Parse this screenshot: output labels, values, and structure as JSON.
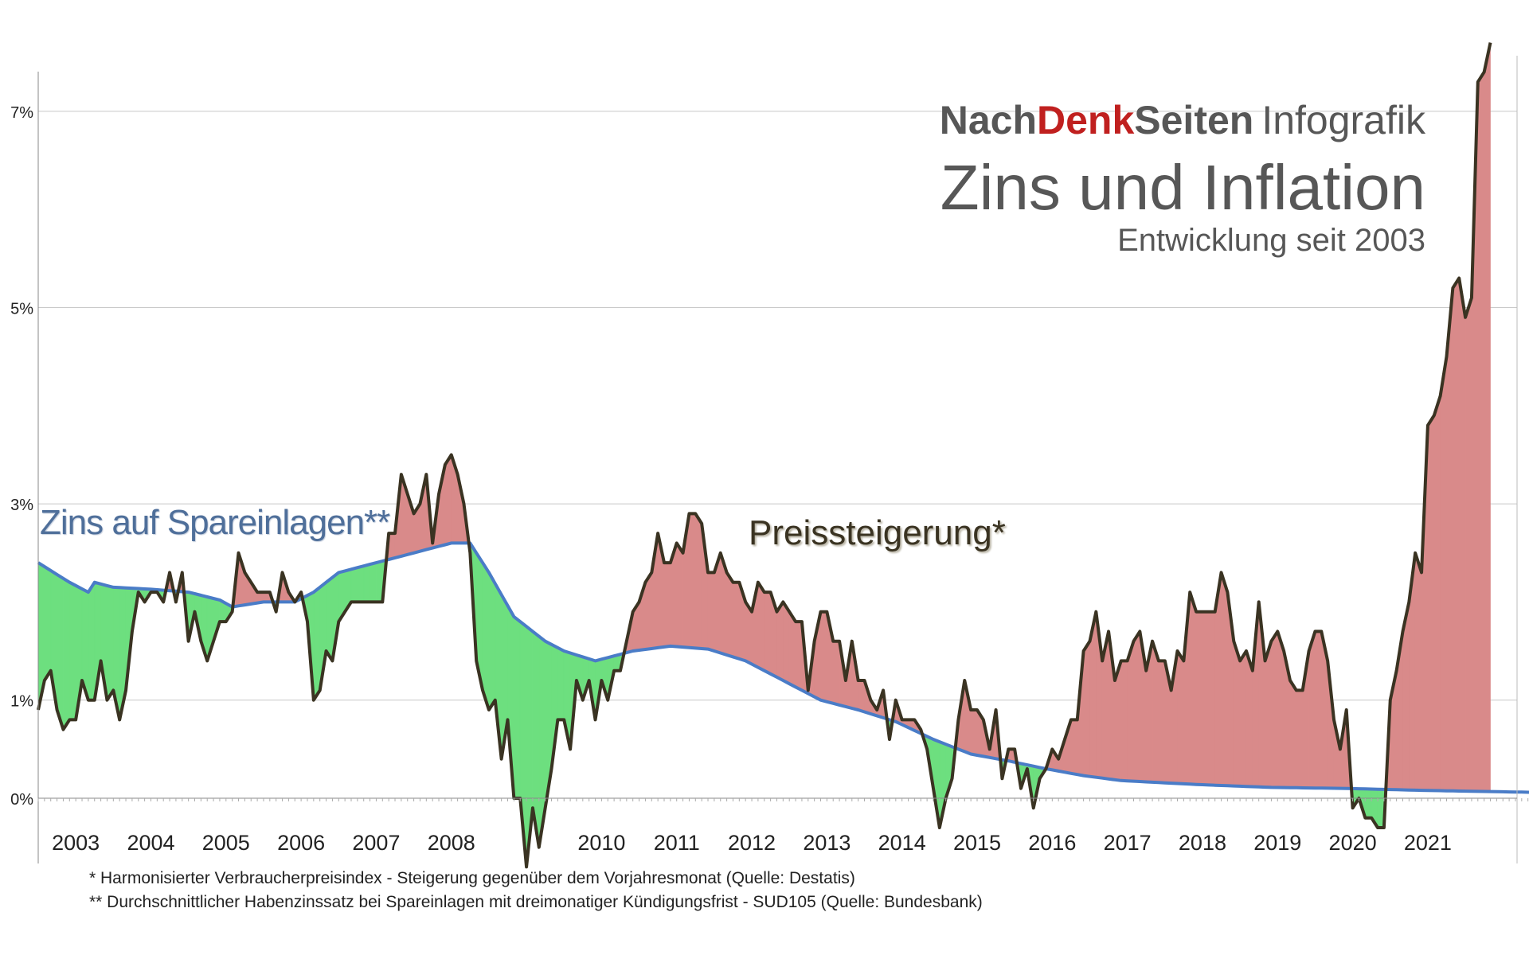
{
  "header": {
    "brand_part1": "Nach",
    "brand_part2": "Denk",
    "brand_part3": "Seiten",
    "brand_suffix": "Infografik",
    "title": "Zins und Inflation",
    "subtitle": "Entwicklung seit 2003"
  },
  "footnotes": [
    "* Harmonisierter Verbraucherpreisindex - Steigerung gegenüber dem Vorjahresmonat (Quelle: Destatis)",
    "** Durchschnittlicher Habenzinssatz bei Spareinlagen mit dreimonatiger Kündigungsfrist - SUD105 (Quelle: Bundesbank)"
  ],
  "colors": {
    "savings_line": "#4a7cc7",
    "inflation_line": "#3a3322",
    "positive_gap_fill": "#d98a8a",
    "negative_gap_fill": "#6ddf7f",
    "gridline": "#c8c8c8",
    "brand_red": "#c0201f",
    "brand_gray": "#575757"
  },
  "chart_data": {
    "type": "line",
    "x_start": "2003-01",
    "x_end": "2022-12",
    "x_tick_labels": [
      "2003",
      "2004",
      "2005",
      "2006",
      "2007",
      "2008",
      "2010",
      "2011",
      "2012",
      "2013",
      "2014",
      "2015",
      "2016",
      "2017",
      "2018",
      "2019",
      "2020",
      "2021"
    ],
    "y_tick_labels": [
      "0%",
      "1%",
      "3%",
      "5%",
      "7%"
    ],
    "y_tick_values": [
      0,
      1,
      3,
      5,
      7
    ],
    "ylim": [
      -0.75,
      7.5
    ],
    "grid": "horizontal",
    "series": [
      {
        "name": "Zins auf Spareinlagen**",
        "role": "savings",
        "points": [
          [
            "2003-01",
            2.4
          ],
          [
            "2003-06",
            2.2
          ],
          [
            "2003-09",
            2.1
          ],
          [
            "2003-10",
            2.2
          ],
          [
            "2004-01",
            2.15
          ],
          [
            "2004-07",
            2.13
          ],
          [
            "2005-01",
            2.1
          ],
          [
            "2005-06",
            2.02
          ],
          [
            "2005-08",
            1.95
          ],
          [
            "2006-01",
            2.0
          ],
          [
            "2006-06",
            2.0
          ],
          [
            "2006-09",
            2.1
          ],
          [
            "2007-01",
            2.3
          ],
          [
            "2007-07",
            2.4
          ],
          [
            "2008-01",
            2.5
          ],
          [
            "2008-07",
            2.6
          ],
          [
            "2008-10",
            2.6
          ],
          [
            "2009-01",
            2.3
          ],
          [
            "2009-05",
            1.85
          ],
          [
            "2009-10",
            1.6
          ],
          [
            "2010-01",
            1.5
          ],
          [
            "2010-06",
            1.4
          ],
          [
            "2010-12",
            1.5
          ],
          [
            "2011-06",
            1.55
          ],
          [
            "2011-12",
            1.52
          ],
          [
            "2012-06",
            1.4
          ],
          [
            "2012-12",
            1.2
          ],
          [
            "2013-06",
            1.0
          ],
          [
            "2013-12",
            0.9
          ],
          [
            "2014-06",
            0.78
          ],
          [
            "2014-12",
            0.6
          ],
          [
            "2015-06",
            0.45
          ],
          [
            "2015-12",
            0.38
          ],
          [
            "2016-06",
            0.3
          ],
          [
            "2016-12",
            0.23
          ],
          [
            "2017-06",
            0.18
          ],
          [
            "2018-06",
            0.14
          ],
          [
            "2019-06",
            0.11
          ],
          [
            "2020-06",
            0.1
          ],
          [
            "2021-06",
            0.08
          ],
          [
            "2022-12",
            0.06
          ]
        ]
      },
      {
        "name": "Preissteigerung*",
        "role": "inflation",
        "points": [
          [
            "2003-01",
            0.9
          ],
          [
            "2003-02",
            1.2
          ],
          [
            "2003-03",
            1.3
          ],
          [
            "2003-04",
            0.9
          ],
          [
            "2003-05",
            0.7
          ],
          [
            "2003-06",
            0.8
          ],
          [
            "2003-07",
            0.8
          ],
          [
            "2003-08",
            1.2
          ],
          [
            "2003-09",
            1.0
          ],
          [
            "2003-10",
            1.0
          ],
          [
            "2003-11",
            1.4
          ],
          [
            "2003-12",
            1.0
          ],
          [
            "2004-01",
            1.1
          ],
          [
            "2004-02",
            0.8
          ],
          [
            "2004-03",
            1.1
          ],
          [
            "2004-04",
            1.7
          ],
          [
            "2004-05",
            2.1
          ],
          [
            "2004-06",
            2.0
          ],
          [
            "2004-07",
            2.1
          ],
          [
            "2004-08",
            2.1
          ],
          [
            "2004-09",
            2.0
          ],
          [
            "2004-10",
            2.3
          ],
          [
            "2004-11",
            2.0
          ],
          [
            "2004-12",
            2.3
          ],
          [
            "2005-01",
            1.6
          ],
          [
            "2005-02",
            1.9
          ],
          [
            "2005-03",
            1.6
          ],
          [
            "2005-04",
            1.4
          ],
          [
            "2005-05",
            1.6
          ],
          [
            "2005-06",
            1.8
          ],
          [
            "2005-07",
            1.8
          ],
          [
            "2005-08",
            1.9
          ],
          [
            "2005-09",
            2.5
          ],
          [
            "2005-10",
            2.3
          ],
          [
            "2005-11",
            2.2
          ],
          [
            "2005-12",
            2.1
          ],
          [
            "2006-01",
            2.1
          ],
          [
            "2006-02",
            2.1
          ],
          [
            "2006-03",
            1.9
          ],
          [
            "2006-04",
            2.3
          ],
          [
            "2006-05",
            2.1
          ],
          [
            "2006-06",
            2.0
          ],
          [
            "2006-07",
            2.1
          ],
          [
            "2006-08",
            1.8
          ],
          [
            "2006-09",
            1.0
          ],
          [
            "2006-10",
            1.1
          ],
          [
            "2006-11",
            1.5
          ],
          [
            "2006-12",
            1.4
          ],
          [
            "2007-01",
            1.8
          ],
          [
            "2007-02",
            1.9
          ],
          [
            "2007-03",
            2.0
          ],
          [
            "2007-04",
            2.0
          ],
          [
            "2007-05",
            2.0
          ],
          [
            "2007-06",
            2.0
          ],
          [
            "2007-07",
            2.0
          ],
          [
            "2007-08",
            2.0
          ],
          [
            "2007-09",
            2.7
          ],
          [
            "2007-10",
            2.7
          ],
          [
            "2007-11",
            3.3
          ],
          [
            "2007-12",
            3.1
          ],
          [
            "2008-01",
            2.9
          ],
          [
            "2008-02",
            3.0
          ],
          [
            "2008-03",
            3.3
          ],
          [
            "2008-04",
            2.6
          ],
          [
            "2008-05",
            3.1
          ],
          [
            "2008-06",
            3.4
          ],
          [
            "2008-07",
            3.5
          ],
          [
            "2008-08",
            3.3
          ],
          [
            "2008-09",
            3.0
          ],
          [
            "2008-10",
            2.5
          ],
          [
            "2008-11",
            1.4
          ],
          [
            "2008-12",
            1.1
          ],
          [
            "2009-01",
            0.9
          ],
          [
            "2009-02",
            1.0
          ],
          [
            "2009-03",
            0.4
          ],
          [
            "2009-04",
            0.8
          ],
          [
            "2009-05",
            0.0
          ],
          [
            "2009-06",
            0.0
          ],
          [
            "2009-07",
            -0.7
          ],
          [
            "2009-08",
            -0.1
          ],
          [
            "2009-09",
            -0.5
          ],
          [
            "2009-10",
            -0.1
          ],
          [
            "2009-11",
            0.3
          ],
          [
            "2009-12",
            0.8
          ],
          [
            "2010-01",
            0.8
          ],
          [
            "2010-02",
            0.5
          ],
          [
            "2010-03",
            1.2
          ],
          [
            "2010-04",
            1.0
          ],
          [
            "2010-05",
            1.2
          ],
          [
            "2010-06",
            0.8
          ],
          [
            "2010-07",
            1.2
          ],
          [
            "2010-08",
            1.0
          ],
          [
            "2010-09",
            1.3
          ],
          [
            "2010-10",
            1.3
          ],
          [
            "2010-11",
            1.6
          ],
          [
            "2010-12",
            1.9
          ],
          [
            "2011-01",
            2.0
          ],
          [
            "2011-02",
            2.2
          ],
          [
            "2011-03",
            2.3
          ],
          [
            "2011-04",
            2.7
          ],
          [
            "2011-05",
            2.4
          ],
          [
            "2011-06",
            2.4
          ],
          [
            "2011-07",
            2.6
          ],
          [
            "2011-08",
            2.5
          ],
          [
            "2011-09",
            2.9
          ],
          [
            "2011-10",
            2.9
          ],
          [
            "2011-11",
            2.8
          ],
          [
            "2011-12",
            2.3
          ],
          [
            "2012-01",
            2.3
          ],
          [
            "2012-02",
            2.5
          ],
          [
            "2012-03",
            2.3
          ],
          [
            "2012-04",
            2.2
          ],
          [
            "2012-05",
            2.2
          ],
          [
            "2012-06",
            2.0
          ],
          [
            "2012-07",
            1.9
          ],
          [
            "2012-08",
            2.2
          ],
          [
            "2012-09",
            2.1
          ],
          [
            "2012-10",
            2.1
          ],
          [
            "2012-11",
            1.9
          ],
          [
            "2012-12",
            2.0
          ],
          [
            "2013-01",
            1.9
          ],
          [
            "2013-02",
            1.8
          ],
          [
            "2013-03",
            1.8
          ],
          [
            "2013-04",
            1.1
          ],
          [
            "2013-05",
            1.6
          ],
          [
            "2013-06",
            1.9
          ],
          [
            "2013-07",
            1.9
          ],
          [
            "2013-08",
            1.6
          ],
          [
            "2013-09",
            1.6
          ],
          [
            "2013-10",
            1.2
          ],
          [
            "2013-11",
            1.6
          ],
          [
            "2013-12",
            1.2
          ],
          [
            "2014-01",
            1.2
          ],
          [
            "2014-02",
            1.0
          ],
          [
            "2014-03",
            0.9
          ],
          [
            "2014-04",
            1.1
          ],
          [
            "2014-05",
            0.6
          ],
          [
            "2014-06",
            1.0
          ],
          [
            "2014-07",
            0.8
          ],
          [
            "2014-08",
            0.8
          ],
          [
            "2014-09",
            0.8
          ],
          [
            "2014-10",
            0.7
          ],
          [
            "2014-11",
            0.5
          ],
          [
            "2014-12",
            0.1
          ],
          [
            "2015-01",
            -0.3
          ],
          [
            "2015-02",
            0.0
          ],
          [
            "2015-03",
            0.2
          ],
          [
            "2015-04",
            0.8
          ],
          [
            "2015-05",
            1.2
          ],
          [
            "2015-06",
            0.9
          ],
          [
            "2015-07",
            0.9
          ],
          [
            "2015-08",
            0.8
          ],
          [
            "2015-09",
            0.5
          ],
          [
            "2015-10",
            0.9
          ],
          [
            "2015-11",
            0.2
          ],
          [
            "2015-12",
            0.5
          ],
          [
            "2016-01",
            0.5
          ],
          [
            "2016-02",
            0.1
          ],
          [
            "2016-03",
            0.3
          ],
          [
            "2016-04",
            -0.1
          ],
          [
            "2016-05",
            0.2
          ],
          [
            "2016-06",
            0.3
          ],
          [
            "2016-07",
            0.5
          ],
          [
            "2016-08",
            0.4
          ],
          [
            "2016-09",
            0.6
          ],
          [
            "2016-10",
            0.8
          ],
          [
            "2016-11",
            0.8
          ],
          [
            "2016-12",
            1.5
          ],
          [
            "2017-01",
            1.6
          ],
          [
            "2017-02",
            1.9
          ],
          [
            "2017-03",
            1.4
          ],
          [
            "2017-04",
            1.7
          ],
          [
            "2017-05",
            1.2
          ],
          [
            "2017-06",
            1.4
          ],
          [
            "2017-07",
            1.4
          ],
          [
            "2017-08",
            1.6
          ],
          [
            "2017-09",
            1.7
          ],
          [
            "2017-10",
            1.3
          ],
          [
            "2017-11",
            1.6
          ],
          [
            "2017-12",
            1.4
          ],
          [
            "2018-01",
            1.4
          ],
          [
            "2018-02",
            1.1
          ],
          [
            "2018-03",
            1.5
          ],
          [
            "2018-04",
            1.4
          ],
          [
            "2018-05",
            2.1
          ],
          [
            "2018-06",
            1.9
          ],
          [
            "2018-07",
            1.9
          ],
          [
            "2018-08",
            1.9
          ],
          [
            "2018-09",
            1.9
          ],
          [
            "2018-10",
            2.3
          ],
          [
            "2018-11",
            2.1
          ],
          [
            "2018-12",
            1.6
          ],
          [
            "2019-01",
            1.4
          ],
          [
            "2019-02",
            1.5
          ],
          [
            "2019-03",
            1.3
          ],
          [
            "2019-04",
            2.0
          ],
          [
            "2019-05",
            1.4
          ],
          [
            "2019-06",
            1.6
          ],
          [
            "2019-07",
            1.7
          ],
          [
            "2019-08",
            1.5
          ],
          [
            "2019-09",
            1.2
          ],
          [
            "2019-10",
            1.1
          ],
          [
            "2019-11",
            1.1
          ],
          [
            "2019-12",
            1.5
          ],
          [
            "2020-01",
            1.7
          ],
          [
            "2020-02",
            1.7
          ],
          [
            "2020-03",
            1.4
          ],
          [
            "2020-04",
            0.8
          ],
          [
            "2020-05",
            0.5
          ],
          [
            "2020-06",
            0.9
          ],
          [
            "2020-07",
            -0.1
          ],
          [
            "2020-08",
            0.0
          ],
          [
            "2020-09",
            -0.2
          ],
          [
            "2020-10",
            -0.2
          ],
          [
            "2020-11",
            -0.3
          ],
          [
            "2020-12",
            -0.3
          ],
          [
            "2021-01",
            1.0
          ],
          [
            "2021-02",
            1.3
          ],
          [
            "2021-03",
            1.7
          ],
          [
            "2021-04",
            2.0
          ],
          [
            "2021-05",
            2.5
          ],
          [
            "2021-06",
            2.3
          ],
          [
            "2021-07",
            3.8
          ],
          [
            "2021-08",
            3.9
          ],
          [
            "2021-09",
            4.1
          ],
          [
            "2021-10",
            4.5
          ],
          [
            "2021-11",
            5.2
          ],
          [
            "2021-12",
            5.3
          ],
          [
            "2022-01",
            4.9
          ],
          [
            "2022-02",
            5.1
          ],
          [
            "2022-03",
            7.3
          ],
          [
            "2022-04",
            7.4
          ],
          [
            "2022-05",
            7.7
          ]
        ]
      }
    ],
    "annotations": [
      {
        "id": "zins",
        "text": "Zins auf Spareinlagen**"
      },
      {
        "id": "preis",
        "text": "Preissteigerung*"
      }
    ]
  }
}
